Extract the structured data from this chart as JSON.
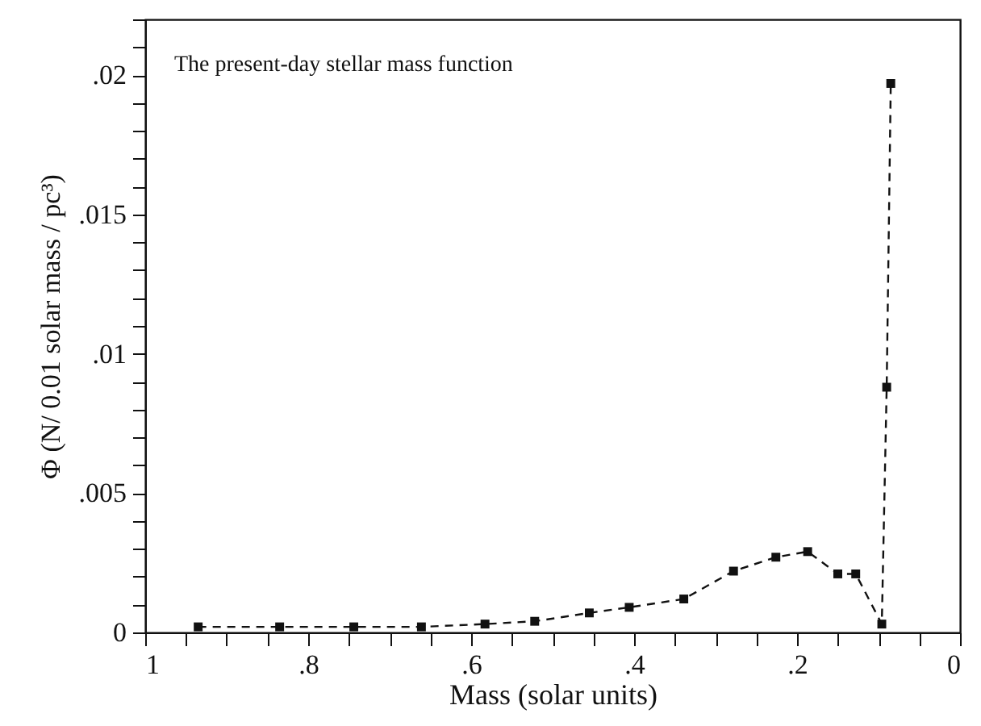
{
  "chart_data": {
    "type": "line",
    "xlabel": "Mass (solar units)",
    "ylabel": "Φ (N/ 0.01 solar mass / pc³)",
    "annotations": [
      "The present-day stellar mass function"
    ],
    "x": [
      0.935,
      0.835,
      0.744,
      0.661,
      0.583,
      0.522,
      0.455,
      0.406,
      0.339,
      0.278,
      0.226,
      0.187,
      0.15,
      0.128,
      0.096,
      0.09,
      0.085
    ],
    "series": [
      {
        "color": "#111111",
        "values": [
          0.0002,
          0.0002,
          0.0002,
          0.0002,
          0.0003,
          0.0004,
          0.0007,
          0.0009,
          0.0012,
          0.0022,
          0.0027,
          0.0029,
          0.0021,
          0.0021,
          0.0003,
          0.0088,
          0.0197
        ]
      }
    ],
    "xlim": [
      1,
      0
    ],
    "xticks": [
      {
        "value": 1,
        "label": "1"
      },
      {
        "value": 0.95,
        "label": null
      },
      {
        "value": 0.9,
        "label": null
      },
      {
        "value": 0.85,
        "label": null
      },
      {
        "value": 0.8,
        "label": ".8"
      },
      {
        "value": 0.75,
        "label": null
      },
      {
        "value": 0.7,
        "label": null
      },
      {
        "value": 0.65,
        "label": null
      },
      {
        "value": 0.6,
        "label": ".6"
      },
      {
        "value": 0.55,
        "label": null
      },
      {
        "value": 0.5,
        "label": null
      },
      {
        "value": 0.45,
        "label": null
      },
      {
        "value": 0.4,
        "label": ".4"
      },
      {
        "value": 0.35,
        "label": null
      },
      {
        "value": 0.3,
        "label": null
      },
      {
        "value": 0.25,
        "label": null
      },
      {
        "value": 0.2,
        "label": ".2"
      },
      {
        "value": 0.15,
        "label": null
      },
      {
        "value": 0.1,
        "label": null
      },
      {
        "value": 0.05,
        "label": null
      },
      {
        "value": 0,
        "label": "0"
      }
    ],
    "ylim": [
      0,
      0.022
    ],
    "yticks": [
      {
        "value": 0,
        "label": "0"
      },
      {
        "value": 0.001,
        "label": null
      },
      {
        "value": 0.002,
        "label": null
      },
      {
        "value": 0.003,
        "label": null
      },
      {
        "value": 0.004,
        "label": null
      },
      {
        "value": 0.005,
        "label": ".005"
      },
      {
        "value": 0.006,
        "label": null
      },
      {
        "value": 0.007,
        "label": null
      },
      {
        "value": 0.008,
        "label": null
      },
      {
        "value": 0.009,
        "label": null
      },
      {
        "value": 0.01,
        "label": ".01"
      },
      {
        "value": 0.011,
        "label": null
      },
      {
        "value": 0.012,
        "label": null
      },
      {
        "value": 0.013,
        "label": null
      },
      {
        "value": 0.014,
        "label": null
      },
      {
        "value": 0.015,
        "label": ".015"
      },
      {
        "value": 0.016,
        "label": null
      },
      {
        "value": 0.017,
        "label": null
      },
      {
        "value": 0.018,
        "label": null
      },
      {
        "value": 0.019,
        "label": null
      },
      {
        "value": 0.02,
        "label": ".02"
      },
      {
        "value": 0.021,
        "label": null
      },
      {
        "value": 0.022,
        "label": null
      }
    ],
    "marker": "square",
    "line_style": "dashed",
    "grid": false
  }
}
